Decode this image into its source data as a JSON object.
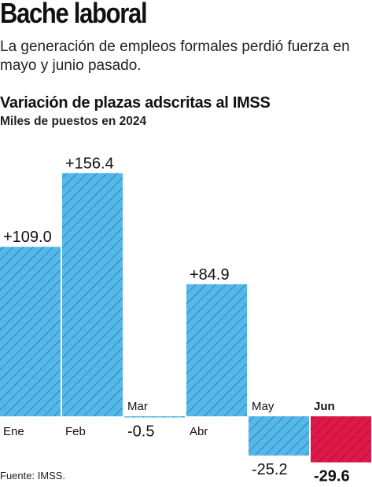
{
  "header": {
    "headline": "Bache laboral",
    "subtitle": "La generación de empleos formales perdió fuerza en mayo y junio pasado."
  },
  "chart_data": {
    "type": "bar",
    "title": "Variación de plazas adscritas al IMSS",
    "subtitle": "Miles de puestos en 2024",
    "categories": [
      "Ene",
      "Feb",
      "Mar",
      "Abr",
      "May",
      "Jun"
    ],
    "values": [
      109.0,
      156.4,
      -0.5,
      84.9,
      -25.2,
      -29.6
    ],
    "data_labels": [
      "+109.0",
      "+156.4",
      "-0.5",
      "+84.9",
      "-25.2",
      "-29.6"
    ],
    "highlight_category": "Jun",
    "colors": {
      "bar": "#55b8ea",
      "highlight": "#e0184a",
      "hatch": "#1a4f7a",
      "hatch_highlight": "#7a0a25"
    },
    "grid": false,
    "legend": "none"
  },
  "footer": {
    "source": "Fuente: IMSS."
  }
}
